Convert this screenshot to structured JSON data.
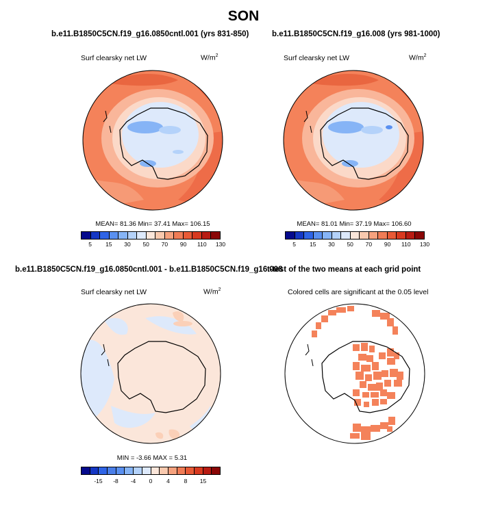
{
  "figure_title": "SON",
  "chart_data": [
    {
      "type": "polar-map",
      "title": "b.e11.B1850C5CN.f19_g16.0850cntl.001 (yrs 831-850)",
      "variable": "Surf clearsky net LW",
      "units": "W/m",
      "units_exp": "2",
      "stats": "MEAN= 81.36  Min= 37.41  Max= 106.15",
      "colorbar": {
        "labels": [
          "5",
          "15",
          "30",
          "50",
          "70",
          "90",
          "110",
          "130"
        ],
        "colors": [
          "#050a8c",
          "#1537c4",
          "#2f64e6",
          "#5a90f0",
          "#86b4f6",
          "#b4d2fa",
          "#dde9fb",
          "#fbe6da",
          "#f9c9ae",
          "#f6a27e",
          "#f07c56",
          "#e85a36",
          "#d8391f",
          "#b81b12",
          "#8a0606"
        ]
      }
    },
    {
      "type": "polar-map",
      "title": "b.e11.B1850C5CN.f19_g16.008 (yrs 981-1000)",
      "variable": "Surf clearsky net LW",
      "units": "W/m",
      "units_exp": "2",
      "stats": "MEAN= 81.01  Min= 37.19  Max= 106.60",
      "colorbar": {
        "labels": [
          "5",
          "15",
          "30",
          "50",
          "70",
          "90",
          "110",
          "130"
        ],
        "colors": [
          "#050a8c",
          "#1537c4",
          "#2f64e6",
          "#5a90f0",
          "#86b4f6",
          "#b4d2fa",
          "#dde9fb",
          "#fbe6da",
          "#f9c9ae",
          "#f6a27e",
          "#f07c56",
          "#e85a36",
          "#d8391f",
          "#b81b12",
          "#8a0606"
        ]
      }
    },
    {
      "type": "polar-map",
      "title": "b.e11.B1850C5CN.f19_g16.0850cntl.001 - b.e11.B1850C5CN.f19_g16.008",
      "variable": "Surf clearsky net LW",
      "units": "W/m",
      "units_exp": "2",
      "stats": "MIN =  -3.66 MAX =   5.31",
      "colorbar": {
        "labels": [
          "-15",
          "-8",
          "-4",
          "0",
          "4",
          "8",
          "15"
        ],
        "colors": [
          "#050a8c",
          "#1537c4",
          "#2f64e6",
          "#4a7ee8",
          "#5a90f0",
          "#86b4f6",
          "#b4d2fa",
          "#dde9fb",
          "#fbe6da",
          "#f9c9ae",
          "#f6a27e",
          "#f07c56",
          "#e85a36",
          "#d8391f",
          "#b81b12",
          "#8a0606"
        ]
      }
    },
    {
      "type": "polar-map",
      "title": "t-test of the two means at each grid point",
      "subtitle": "Colored cells are significant at the 0.05 level",
      "significant_color": "#f4825a"
    }
  ]
}
